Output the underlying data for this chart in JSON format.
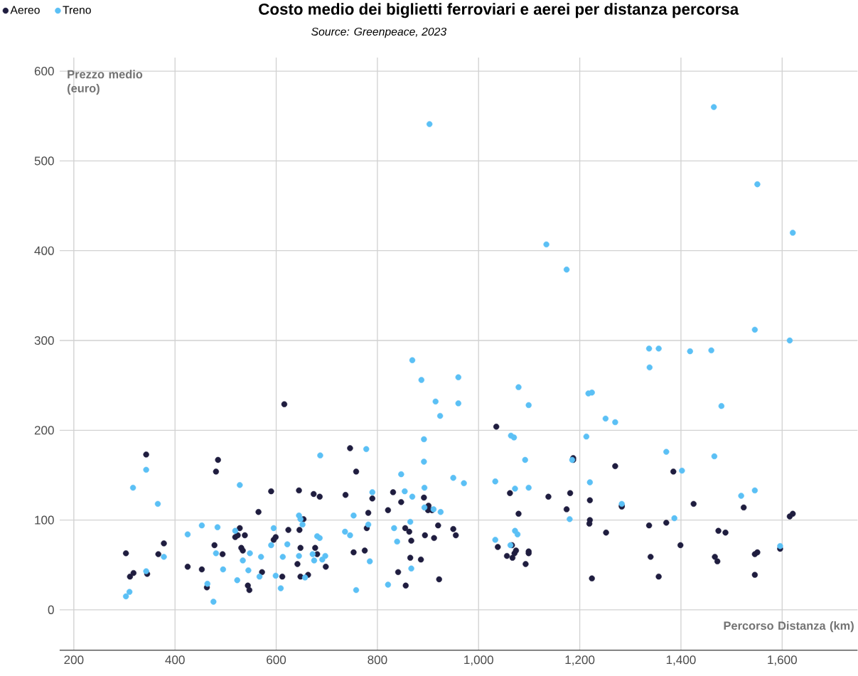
{
  "chart_data": {
    "type": "scatter",
    "title": "Costo medio dei biglietti ferroviari e aerei per distanza percorsa",
    "annotations": [
      "Source: Greenpeace, 2023"
    ],
    "xlabel": "Percorso Distanza (km)",
    "ylabel": "Prezzo medio (euro)",
    "xlim": [
      172,
      1749
    ],
    "ylim": [
      -45,
      615
    ],
    "xticks": [
      200,
      400,
      600,
      800,
      {
        "value": 1000,
        "label": "1,000"
      },
      {
        "value": 1200,
        "label": "1,200"
      },
      {
        "value": 1400,
        "label": "1,400"
      },
      {
        "value": 1600,
        "label": "1,600"
      }
    ],
    "yticks": [
      0,
      100,
      200,
      300,
      400,
      500,
      600
    ],
    "grid": true,
    "legend": "top left",
    "marker": "circle",
    "series": [
      {
        "name": "Aereo",
        "color": "#1f1d3f",
        "x": [
          303,
          311,
          318,
          343,
          345,
          367,
          378,
          425,
          453,
          463,
          478,
          481,
          485,
          494,
          519,
          524,
          528,
          531,
          534,
          538,
          544,
          547,
          565,
          572,
          590,
          595,
          599,
          612,
          616,
          624,
          642,
          645,
          646,
          648,
          648,
          654,
          663,
          674,
          677,
          681,
          686,
          698,
          737,
          746,
          753,
          758,
          775,
          779,
          782,
          790,
          821,
          831,
          841,
          847,
          855,
          856,
          863,
          865,
          867,
          886,
          892,
          894,
          900,
          901,
          908,
          912,
          920,
          922,
          950,
          955,
          1035,
          1038,
          1056,
          1062,
          1066,
          1067,
          1071,
          1074,
          1079,
          1093,
          1099,
          1099,
          1138,
          1174,
          1181,
          1187,
          1187,
          1219,
          1220,
          1220,
          1224,
          1252,
          1270,
          1283,
          1283,
          1337,
          1340,
          1356,
          1371,
          1385,
          1399,
          1425,
          1467,
          1472,
          1474,
          1488,
          1524,
          1546,
          1546,
          1551,
          1596,
          1615,
          1621
        ],
        "values": [
          63,
          37,
          41,
          173,
          40,
          62,
          74,
          48,
          45,
          25,
          72,
          154,
          167,
          62,
          81,
          83,
          91,
          69,
          66,
          83,
          27,
          22,
          109,
          42,
          132,
          78,
          81,
          37,
          229,
          89,
          51,
          133,
          89,
          69,
          37,
          101,
          39,
          129,
          69,
          62,
          126,
          48,
          128,
          180,
          64,
          154,
          66,
          91,
          108,
          124,
          111,
          131,
          42,
          120,
          91,
          27,
          87,
          58,
          77,
          56,
          125,
          83,
          111,
          116,
          111,
          80,
          94,
          34,
          90,
          83,
          204,
          70,
          60,
          130,
          72,
          58,
          63,
          66,
          107,
          51,
          65,
          63,
          126,
          112,
          130,
          169,
          167,
          96,
          100,
          122,
          35,
          86,
          160,
          115,
          116,
          94,
          59,
          37,
          97,
          154,
          72,
          118,
          59,
          54,
          88,
          86,
          114,
          62,
          39,
          64,
          68,
          104,
          107
        ]
      },
      {
        "name": "Treno",
        "color": "#5bc0f5",
        "x": [
          303,
          310,
          317,
          343,
          343,
          366,
          378,
          425,
          453,
          464,
          476,
          481,
          484,
          495,
          519,
          523,
          528,
          534,
          545,
          548,
          567,
          570,
          590,
          595,
          599,
          609,
          613,
          622,
          645,
          645,
          648,
          652,
          657,
          672,
          675,
          681,
          686,
          687,
          691,
          697,
          736,
          746,
          753,
          758,
          778,
          782,
          785,
          790,
          821,
          833,
          839,
          847,
          854,
          865,
          867,
          869,
          869,
          887,
          892,
          892,
          893,
          893,
          903,
          911,
          915,
          924,
          925,
          950,
          960,
          960,
          971,
          1033,
          1033,
          1063,
          1064,
          1070,
          1072,
          1072,
          1077,
          1079,
          1092,
          1099,
          1099,
          1134,
          1174,
          1180,
          1185,
          1213,
          1217,
          1224,
          1220,
          1251,
          1270,
          1283,
          1337,
          1338,
          1356,
          1371,
          1387,
          1402,
          1418,
          1460,
          1465,
          1466,
          1480,
          1519,
          1546,
          1546,
          1551,
          1596,
          1615,
          1621
        ],
        "values": [
          15,
          20,
          136,
          156,
          43,
          118,
          59,
          84,
          94,
          29,
          9,
          63,
          92,
          45,
          88,
          33,
          139,
          55,
          44,
          63,
          37,
          59,
          72,
          91,
          38,
          24,
          59,
          73,
          60,
          105,
          101,
          95,
          36,
          62,
          55,
          82,
          80,
          172,
          56,
          60,
          87,
          83,
          105,
          22,
          179,
          95,
          54,
          131,
          28,
          91,
          76,
          151,
          132,
          98,
          46,
          126,
          278,
          256,
          190,
          165,
          136,
          114,
          541,
          112,
          232,
          216,
          109,
          147,
          259,
          230,
          141,
          78,
          143,
          72,
          194,
          192,
          88,
          135,
          84,
          248,
          167,
          228,
          136,
          407,
          379,
          101,
          167,
          193,
          241,
          242,
          142,
          213,
          209,
          118,
          291,
          270,
          291,
          176,
          102,
          155,
          288,
          289,
          560,
          171,
          227,
          127,
          312,
          133,
          474,
          71,
          300,
          420
        ]
      }
    ]
  }
}
